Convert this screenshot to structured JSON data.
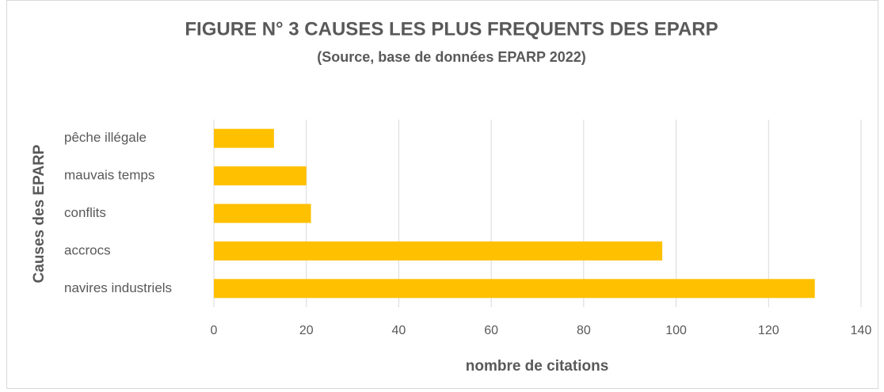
{
  "chart_data": {
    "type": "bar",
    "orientation": "horizontal",
    "title": "FIGURE N° 3 CAUSES LES PLUS FREQUENTS DES EPARP",
    "subtitle": "(Source, base de données EPARP 2022)",
    "x_label": "nombre de citations",
    "y_label": "Causes des EPARP",
    "categories": [
      "pêche illégale",
      "mauvais temps",
      "conflits",
      "accrocs",
      "navires industriels"
    ],
    "values": [
      13,
      20,
      21,
      97,
      130
    ],
    "color": "#ffc000",
    "xlim": [
      0,
      140
    ],
    "xticks": [
      0,
      20,
      40,
      60,
      80,
      100,
      120,
      140
    ],
    "grid": true
  }
}
